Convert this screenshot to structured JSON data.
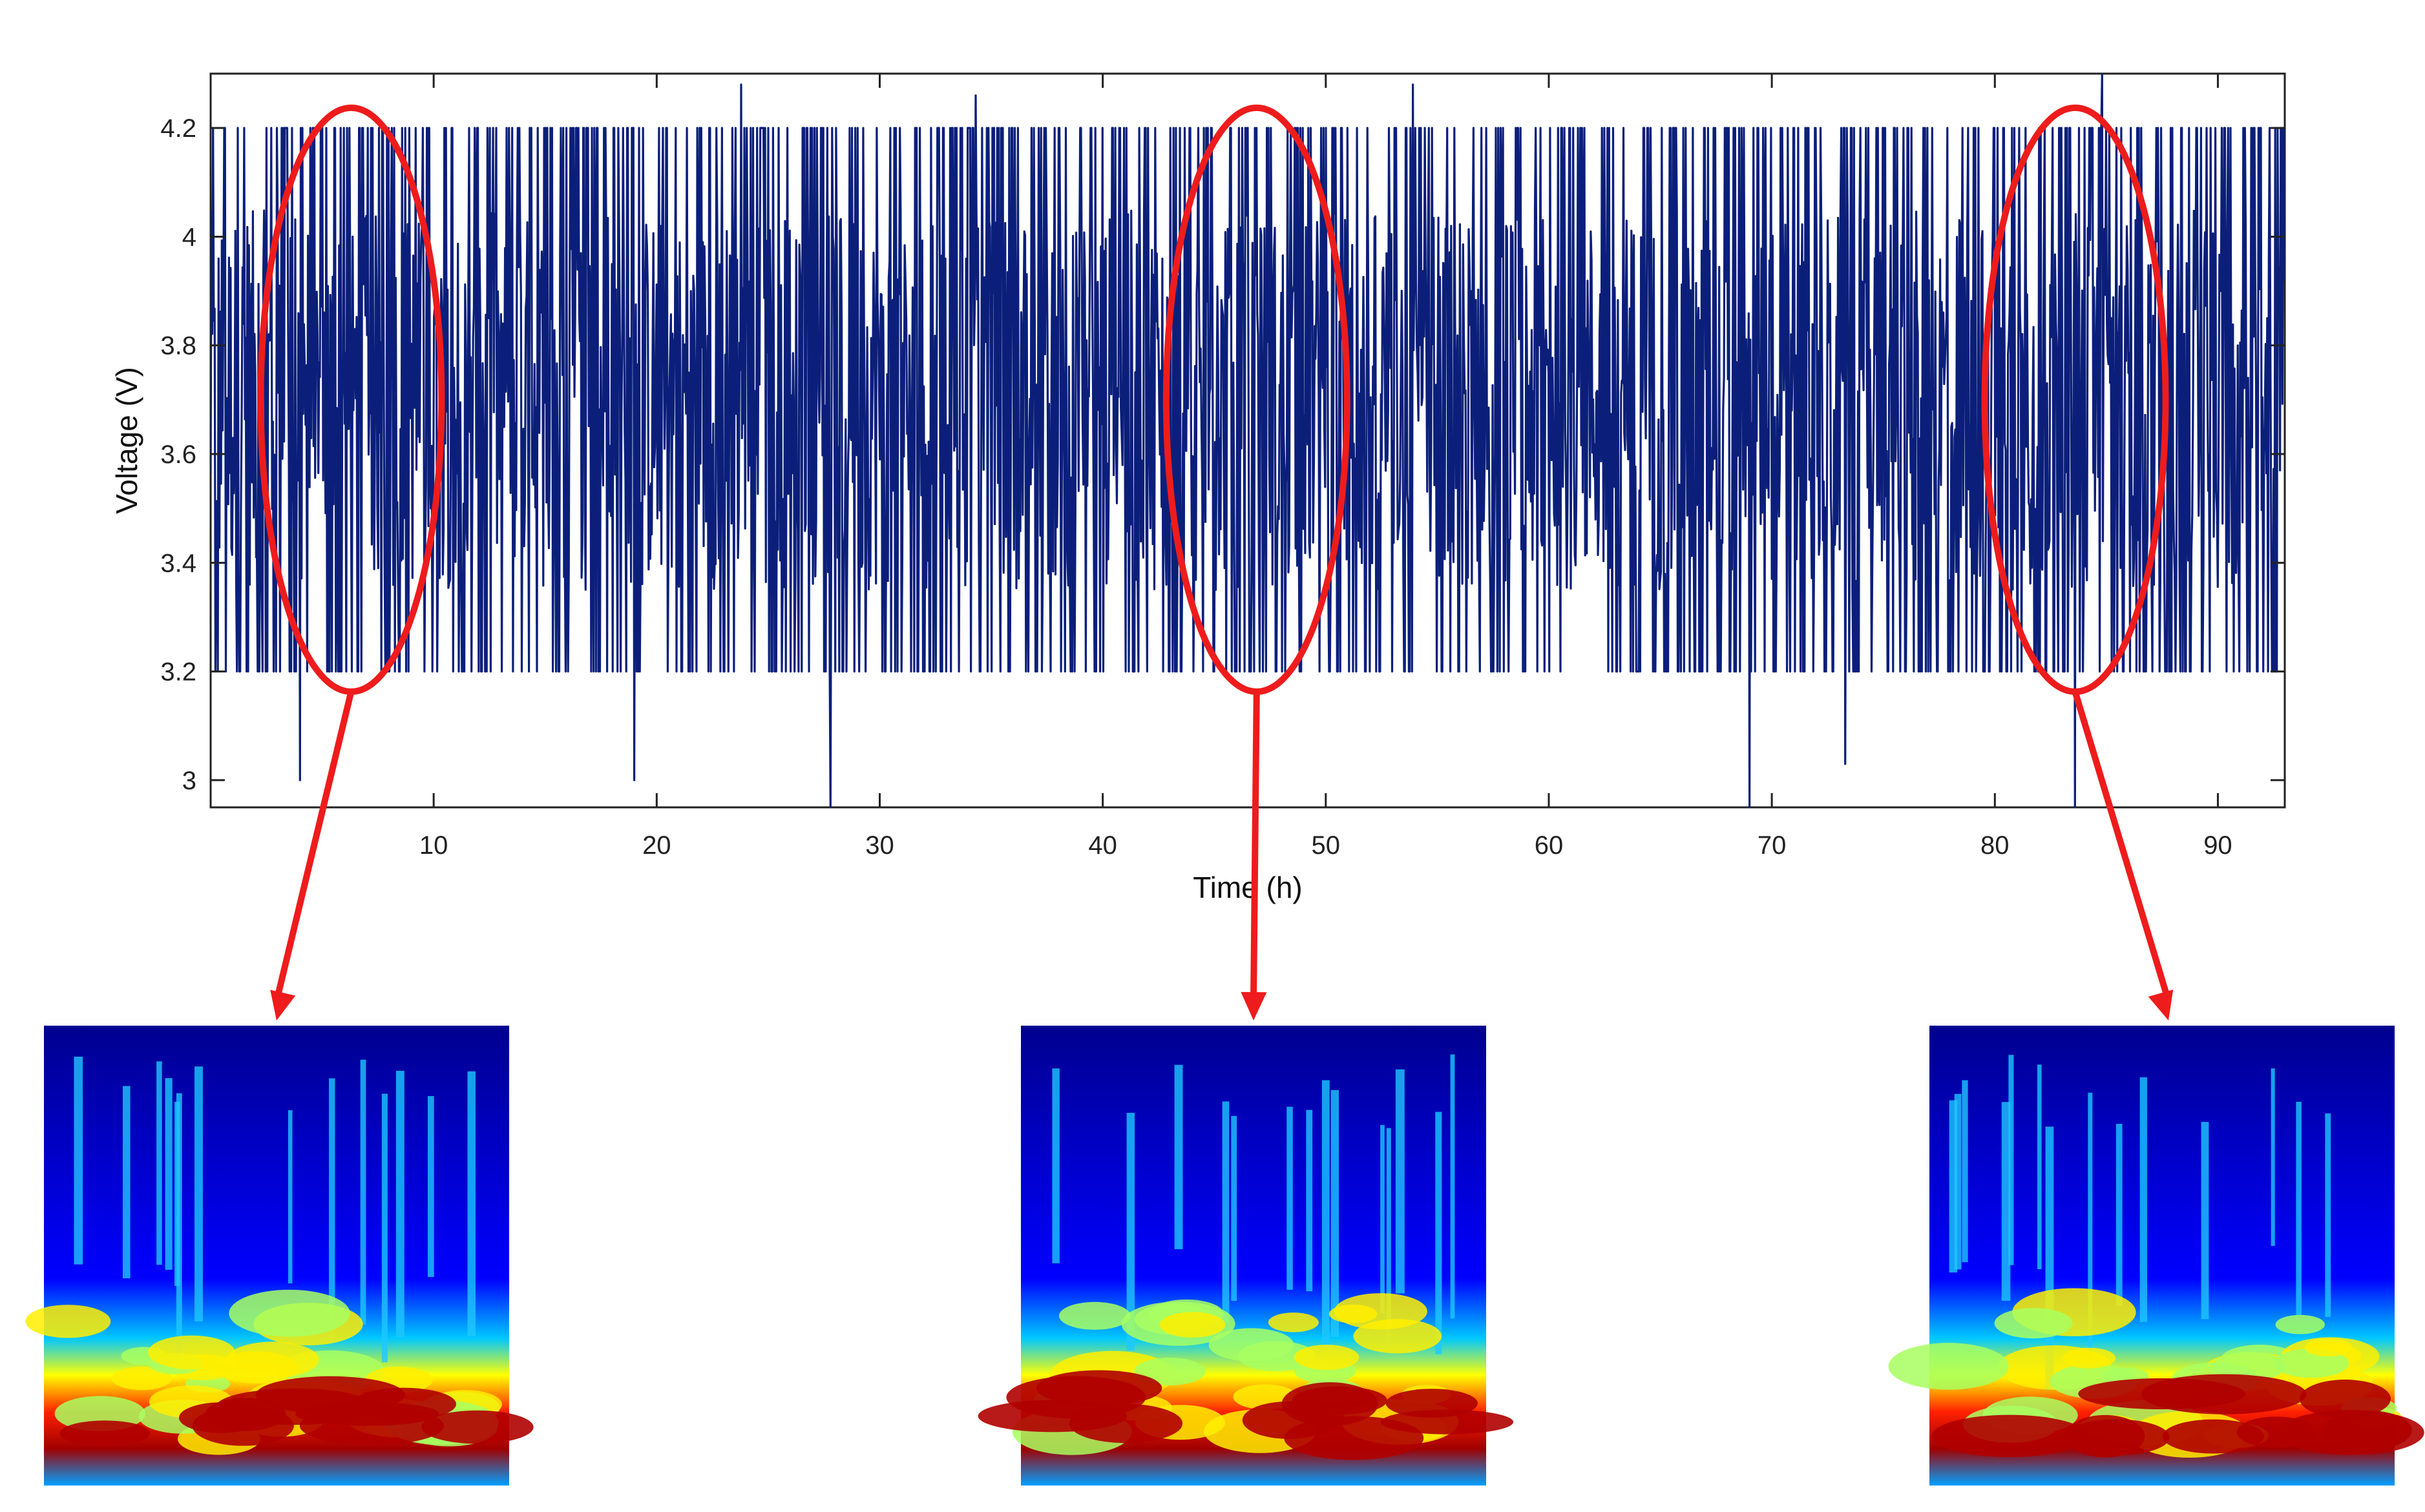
{
  "chart_data": {
    "type": "line",
    "xlabel": "Time (h)",
    "ylabel": "Voltage (V)",
    "xlim": [
      0,
      93
    ],
    "ylim": [
      2.95,
      4.3
    ],
    "x_ticks": [
      10,
      20,
      30,
      40,
      50,
      60,
      70,
      80,
      90
    ],
    "y_ticks": [
      3,
      3.2,
      3.4,
      3.6,
      3.8,
      4,
      4.2
    ],
    "y_tick_labels": [
      "3",
      "3.2",
      "3.4",
      "3.6",
      "3.8",
      "4",
      "4.2"
    ],
    "series": [
      {
        "color": "#0b1f7a",
        "voltage_range": [
          3.2,
          4.2
        ],
        "occasional_spikes": [
          {
            "x": 4.0,
            "y": 3.0
          },
          {
            "x": 19.0,
            "y": 3.0
          },
          {
            "x": 23.8,
            "y": 4.28
          },
          {
            "x": 27.8,
            "y": 2.95
          },
          {
            "x": 34.3,
            "y": 4.26
          },
          {
            "x": 53.9,
            "y": 4.28
          },
          {
            "x": 69.0,
            "y": 2.95
          },
          {
            "x": 73.3,
            "y": 3.03
          },
          {
            "x": 84.8,
            "y": 4.3
          },
          {
            "x": 83.6,
            "y": 2.95
          }
        ]
      }
    ],
    "highlighted_windows": [
      {
        "center_time": 6.3,
        "arrow_color": "#ee1c1c"
      },
      {
        "center_time": 46.9,
        "arrow_color": "#ee1c1c"
      },
      {
        "center_time": 83.6,
        "arrow_color": "#ee1c1c"
      }
    ],
    "insets": [
      {
        "type": "heatmap",
        "colormap": "jet",
        "description_key": "window-1"
      },
      {
        "type": "heatmap",
        "colormap": "jet",
        "description_key": "window-2"
      },
      {
        "type": "heatmap",
        "colormap": "jet",
        "description_key": "window-3"
      }
    ]
  }
}
